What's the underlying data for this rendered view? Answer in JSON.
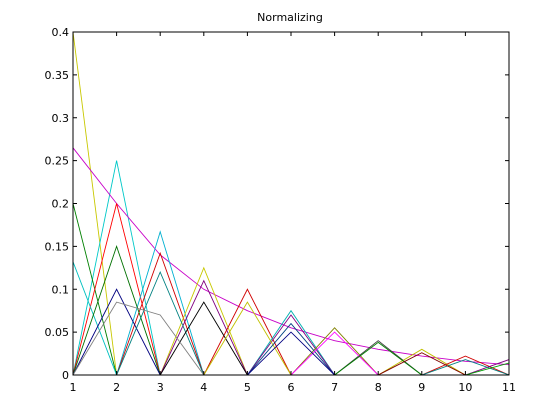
{
  "chart_data": {
    "type": "line",
    "title": "Normalizing",
    "xlabel": "",
    "ylabel": "",
    "xlim": [
      1,
      11
    ],
    "ylim": [
      0,
      0.4
    ],
    "x_ticks": [
      1,
      2,
      3,
      4,
      5,
      6,
      7,
      8,
      9,
      10,
      11
    ],
    "x_tick_labels": [
      "1",
      "2",
      "3",
      "4",
      "5",
      "6",
      "7",
      "8",
      "9",
      "10",
      "11"
    ],
    "y_ticks": [
      0,
      0.05,
      0.1,
      0.15,
      0.2,
      0.25,
      0.3,
      0.35,
      0.4
    ],
    "y_tick_labels": [
      "0",
      "0.05",
      "0.1",
      "0.15",
      "0.2",
      "0.25",
      "0.3",
      "0.35",
      "0.4"
    ],
    "grid": false,
    "legend": false,
    "x": [
      1,
      2,
      3,
      4,
      5,
      6,
      7,
      8,
      9,
      10,
      11
    ],
    "series": [
      {
        "values": [
          0.4,
          0.0,
          0.0,
          0.0,
          0.0,
          0.0,
          0.0,
          0.0,
          0.0,
          0.0,
          0.0
        ]
      },
      {
        "values": [
          0.0,
          0.25,
          0.0,
          0.0,
          0.0,
          0.0,
          0.0,
          0.0,
          0.0,
          0.0,
          0.0
        ]
      },
      {
        "values": [
          0.265,
          0.2,
          0.14,
          0.1,
          0.075,
          0.055,
          0.04,
          0.03,
          0.022,
          0.016,
          0.012
        ]
      },
      {
        "values": [
          0.2,
          0.0,
          0.0,
          0.0,
          0.0,
          0.0,
          0.0,
          0.0,
          0.0,
          0.0,
          0.0
        ]
      },
      {
        "values": [
          0.0,
          0.2,
          0.0,
          0.0,
          0.0,
          0.0,
          0.0,
          0.0,
          0.0,
          0.0,
          0.0
        ]
      },
      {
        "values": [
          0.0,
          0.0,
          0.167,
          0.0,
          0.0,
          0.0,
          0.0,
          0.0,
          0.0,
          0.0,
          0.0
        ]
      },
      {
        "values": [
          0.0,
          0.0,
          0.142,
          0.0,
          0.0,
          0.0,
          0.0,
          0.0,
          0.0,
          0.0,
          0.0
        ]
      },
      {
        "values": [
          0.132,
          0.0,
          0.0,
          0.0,
          0.0,
          0.0,
          0.0,
          0.0,
          0.0,
          0.0,
          0.0
        ]
      },
      {
        "values": [
          0.0,
          0.15,
          0.0,
          0.0,
          0.0,
          0.0,
          0.0,
          0.0,
          0.0,
          0.0,
          0.0
        ]
      },
      {
        "values": [
          0.0,
          0.0,
          0.0,
          0.125,
          0.0,
          0.0,
          0.0,
          0.0,
          0.0,
          0.0,
          0.0
        ]
      },
      {
        "values": [
          0.0,
          0.0,
          0.0,
          0.11,
          0.0,
          0.0,
          0.0,
          0.0,
          0.0,
          0.0,
          0.0
        ]
      },
      {
        "values": [
          0.0,
          0.0,
          0.0,
          0.0,
          0.1,
          0.0,
          0.0,
          0.0,
          0.0,
          0.0,
          0.0
        ]
      },
      {
        "values": [
          0.0,
          0.0,
          0.0,
          0.0,
          0.0,
          0.075,
          0.0,
          0.0,
          0.0,
          0.0,
          0.0
        ]
      },
      {
        "values": [
          0.0,
          0.0,
          0.0,
          0.0,
          0.0,
          0.07,
          0.0,
          0.0,
          0.0,
          0.0,
          0.0
        ]
      },
      {
        "values": [
          0.0,
          0.0,
          0.0,
          0.0,
          0.0,
          0.0,
          0.055,
          0.0,
          0.0,
          0.0,
          0.0
        ]
      },
      {
        "values": [
          0.0,
          0.0,
          0.0,
          0.0,
          0.0,
          0.0,
          0.0,
          0.04,
          0.0,
          0.0,
          0.0
        ]
      },
      {
        "values": [
          0.0,
          0.0,
          0.0,
          0.0,
          0.0,
          0.0,
          0.0,
          0.0,
          0.03,
          0.0,
          0.0
        ]
      },
      {
        "values": [
          0.0,
          0.0,
          0.0,
          0.0,
          0.0,
          0.0,
          0.0,
          0.0,
          0.0,
          0.022,
          0.0
        ]
      },
      {
        "values": [
          0.0,
          0.0,
          0.0,
          0.0,
          0.0,
          0.0,
          0.0,
          0.0,
          0.0,
          0.0,
          0.018
        ]
      },
      {
        "values": [
          0.0,
          0.0,
          0.0,
          0.0,
          0.0,
          0.0,
          0.0,
          0.0,
          0.0,
          0.018,
          0.0
        ]
      },
      {
        "values": [
          0.0,
          0.1,
          0.0,
          0.0,
          0.0,
          0.0,
          0.0,
          0.0,
          0.0,
          0.0,
          0.0
        ]
      },
      {
        "values": [
          0.0,
          0.0,
          0.12,
          0.0,
          0.0,
          0.0,
          0.0,
          0.0,
          0.0,
          0.0,
          0.0
        ]
      },
      {
        "values": [
          0.0,
          0.0,
          0.0,
          0.085,
          0.0,
          0.0,
          0.0,
          0.0,
          0.0,
          0.0,
          0.0
        ]
      },
      {
        "values": [
          0.0,
          0.0,
          0.0,
          0.0,
          0.085,
          0.0,
          0.0,
          0.0,
          0.0,
          0.0,
          0.0
        ]
      },
      {
        "values": [
          0.0,
          0.0,
          0.0,
          0.0,
          0.0,
          0.06,
          0.0,
          0.0,
          0.0,
          0.0,
          0.0
        ]
      },
      {
        "values": [
          0.0,
          0.0,
          0.0,
          0.0,
          0.0,
          0.0,
          0.05,
          0.0,
          0.0,
          0.0,
          0.0
        ]
      },
      {
        "values": [
          0.0,
          0.0,
          0.0,
          0.0,
          0.0,
          0.0,
          0.0,
          0.038,
          0.0,
          0.0,
          0.0
        ]
      },
      {
        "values": [
          0.0,
          0.0,
          0.0,
          0.0,
          0.0,
          0.0,
          0.0,
          0.0,
          0.026,
          0.0,
          0.0
        ]
      },
      {
        "values": [
          0.0,
          0.085,
          0.07,
          0.0,
          0.0,
          0.0,
          0.0,
          0.0,
          0.0,
          0.0,
          0.0
        ]
      },
      {
        "values": [
          0.0,
          0.0,
          0.0,
          0.0,
          0.0,
          0.05,
          0.0,
          0.0,
          0.0,
          0.0,
          0.0
        ]
      },
      {
        "values": [
          0.0,
          0.0,
          0.0,
          0.0,
          0.0,
          0.0,
          0.0,
          0.0,
          0.0,
          0.0,
          0.014
        ]
      }
    ],
    "series_colors": [
      "#c8c800",
      "#00c8c8",
      "#c800c8",
      "#008000",
      "#ff0000",
      "#00b0d0",
      "#d00000",
      "#00c0c0",
      "#007000",
      "#c8c800",
      "#800080",
      "#d00000",
      "#00b0b0",
      "#800080",
      "#808000",
      "#404040",
      "#c0c000",
      "#d00000",
      "#800080",
      "#008080",
      "#000080",
      "#008080",
      "#000000",
      "#c0c000",
      "#004080",
      "#ff00ff",
      "#008000",
      "#800000",
      "#808080",
      "#000080",
      "#00a000"
    ],
    "axes_background": "#ffffff",
    "axes_color": "#000000"
  }
}
